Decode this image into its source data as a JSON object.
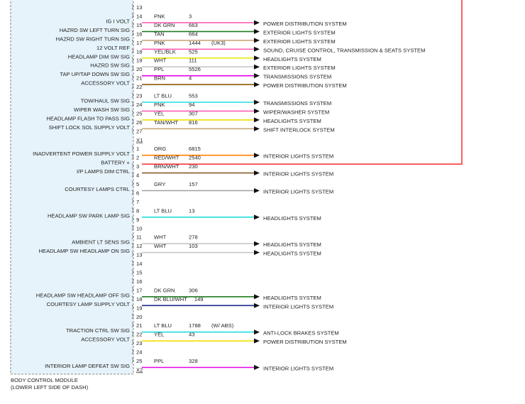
{
  "module": {
    "name": "BODY CONTROL MODULE",
    "location": "(LOWER LEFT SIDE OF DASH)"
  },
  "rows": [
    {
      "pin": 13
    },
    {
      "pin": 14,
      "label": "IG I VOLT",
      "wire": {
        "color": "PNK",
        "circuit": 3,
        "destination": "POWER DISTRIBUTION SYSTEM",
        "line": "#ff5fb8"
      }
    },
    {
      "pin": 15,
      "label": "HAZRD SW LEFT TURN SIG",
      "wire": {
        "color": "DK GRN",
        "circuit": 663,
        "destination": "EXTERIOR LIGHTS SYSTEM",
        "line": "#1f7a1f"
      }
    },
    {
      "pin": 16,
      "label": "HAZRD SW RIGHT TURN SIG",
      "wire": {
        "color": "TAN",
        "circuit": 664,
        "destination": "EXTERIOR LIGHTS SYSTEM",
        "line": "#c9a878"
      }
    },
    {
      "pin": 17,
      "label": "12 VOLT REF",
      "wire": {
        "color": "PNK",
        "circuit": 1444,
        "note": "(UK3)",
        "destination": "SOUND, CRUISE CONTROL, TRANSMISSION & SEATS SYSTEM",
        "line": "#ff5fb8"
      }
    },
    {
      "pin": 18,
      "label": "HEADLAMP DIM SW SIG",
      "wire": {
        "color": "YEL/BLK",
        "circuit": 525,
        "destination": "HEADLIGHTS SYSTEM",
        "line": "#e6e600"
      }
    },
    {
      "pin": 19,
      "label": "HAZRD SW SIG",
      "wire": {
        "color": "WHT",
        "circuit": 111,
        "destination": "EXTERIOR LIGHTS SYSTEM",
        "line": "#c8c8c8"
      }
    },
    {
      "pin": 20,
      "label": "TAP UP/TAP DOWN SW SIG",
      "wire": {
        "color": "PPL",
        "circuit": 5526,
        "destination": "TRANSMISSIONS SYSTEM",
        "line": "#e600e6"
      }
    },
    {
      "pin": 21,
      "label": "ACCESSORY VOLT",
      "wire": {
        "color": "BRN",
        "circuit": 4,
        "destination": "POWER DISTRIBUTION SYSTEM",
        "line": "#8b5a00"
      }
    },
    {
      "pin": 22
    },
    {
      "pin": 23,
      "label": "TOW/HAUL SW SIG",
      "wire": {
        "color": "LT BLU",
        "circuit": 553,
        "destination": "TRANSMISSIONS SYSTEM",
        "line": "#22dede"
      }
    },
    {
      "pin": 24,
      "label": "WIPER WASH SW SIG",
      "wire": {
        "color": "PNK",
        "circuit": 94,
        "destination": "WIPER/WASHER SYSTEM",
        "line": "#ff5fb8"
      }
    },
    {
      "pin": 25,
      "label": "HEADLAMP FLASH TO PASS SIG",
      "wire": {
        "color": "YEL",
        "circuit": 307,
        "destination": "HEADLIGHTS SYSTEM",
        "line": "#f0e000"
      }
    },
    {
      "pin": 26,
      "label": "SHIFT LOCK SOL SUPPLY VOLT",
      "wire": {
        "color": "TAN/WHT",
        "circuit": 816,
        "destination": "SHIFT INTERLOCK SYSTEM",
        "line": "#c9a878"
      }
    },
    {
      "pin": 27
    },
    {
      "connector": "X1"
    },
    {
      "pin": 1,
      "label": "INADVERTENT POWER SUPPLY VOLT",
      "wire": {
        "color": "ORG",
        "circuit": 6815,
        "destination": "INTERIOR LIGHTS SYSTEM",
        "line": "#ff8000"
      }
    },
    {
      "pin": 2,
      "label": "BATTERY +",
      "wire": {
        "color": "RED/WHT",
        "circuit": 2540,
        "line": "#ff3a3a"
      }
    },
    {
      "pin": 3,
      "label": "I/P LAMPS DIM CTRL",
      "wire": {
        "color": "BRN/WHT",
        "circuit": 230,
        "destination": "INTERIOR LIGHTS SYSTEM",
        "line": "#8b5a2b"
      }
    },
    {
      "pin": 4
    },
    {
      "pin": 5,
      "label": "COURTESY LAMPS CTRL",
      "wire": {
        "color": "GRY",
        "circuit": 157,
        "destination": "INTERIOR LIGHTS SYSTEM",
        "line": "#a0a0a0"
      }
    },
    {
      "pin": 6
    },
    {
      "pin": 7
    },
    {
      "pin": 8,
      "label": "HEADLAMP SW PARK LAMP SIG",
      "wire": {
        "color": "LT BLU",
        "circuit": 13,
        "destination": "HEADLIGHTS SYSTEM",
        "line": "#22dede"
      }
    },
    {
      "pin": 9
    },
    {
      "pin": 10
    },
    {
      "pin": 11,
      "label": "AMBIENT LT SENS SIG",
      "wire": {
        "color": "WHT",
        "circuit": 278,
        "destination": "HEADLIGHTS SYSTEM",
        "line": "#c8c8c8"
      }
    },
    {
      "pin": 12,
      "label": "HEADLAMP SW HEADLAMP ON SIG",
      "wire": {
        "color": "WHT",
        "circuit": 103,
        "destination": "HEADLIGHTS SYSTEM",
        "line": "#c8c8c8"
      }
    },
    {
      "pin": 13
    },
    {
      "pin": 14
    },
    {
      "pin": 15
    },
    {
      "pin": 16
    },
    {
      "pin": 17,
      "label": "HEADLAMP SW HEADLAMP OFF SIG",
      "wire": {
        "color": "DK GRN",
        "circuit": 306,
        "destination": "HEADLIGHTS SYSTEM",
        "line": "#1f7a1f"
      }
    },
    {
      "pin": 18,
      "label": "COURTESY LAMP SUPPLY VOLT",
      "wire": {
        "color": "DK BLU/WHT",
        "circuit": 149,
        "destination": "INTERIOR LIGHTS SYSTEM",
        "line": "#1a2a8a"
      }
    },
    {
      "pin": 19
    },
    {
      "pin": 20
    },
    {
      "pin": 21,
      "label": "TRACTION CTRL SW SIG",
      "wire": {
        "color": "LT BLU",
        "circuit": 1788,
        "note": "(W/ ABS)",
        "destination": "ANTI-LOCK BRAKES SYSTEM",
        "line": "#22dede"
      }
    },
    {
      "pin": 22,
      "label": "ACCESSORY VOLT",
      "wire": {
        "color": "YEL",
        "circuit": 43,
        "destination": "POWER DISTRIBUTION SYSTEM",
        "line": "#f0e000"
      }
    },
    {
      "pin": 23
    },
    {
      "pin": 24
    },
    {
      "pin": 25,
      "label": "INTERIOR LAMP DEFEAT SW SIG",
      "wire": {
        "color": "PPL",
        "circuit": 328,
        "destination": "INTERIOR LIGHTS SYSTEM",
        "line": "#e600e6"
      }
    },
    {
      "connector": "X2"
    }
  ]
}
